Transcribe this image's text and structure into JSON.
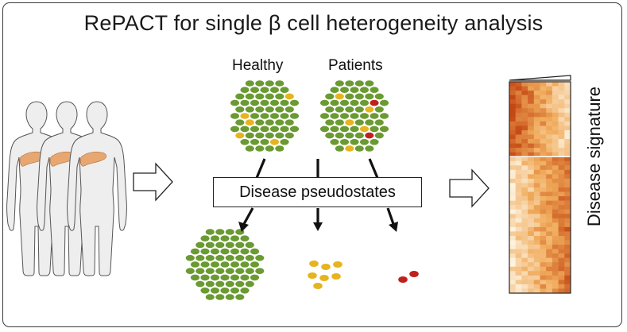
{
  "title": "RePACT for single β cell heterogeneity analysis",
  "labels": {
    "healthy": "Healthy",
    "patients": "Patients",
    "pseudostates": "Disease pseudostates",
    "signature": "Disease signature"
  },
  "colors": {
    "green_cell": "#6a9a32",
    "yellow_cell": "#e6b420",
    "red_cell": "#c0201c",
    "pancreas": "#e8a770",
    "body": "#eeeeee",
    "heatmap_high": "#c8501a",
    "heatmap_low": "#fdf3e0"
  },
  "icons": [
    "human-silhouette-icon",
    "right-arrow-icon",
    "pancreas-icon"
  ]
}
